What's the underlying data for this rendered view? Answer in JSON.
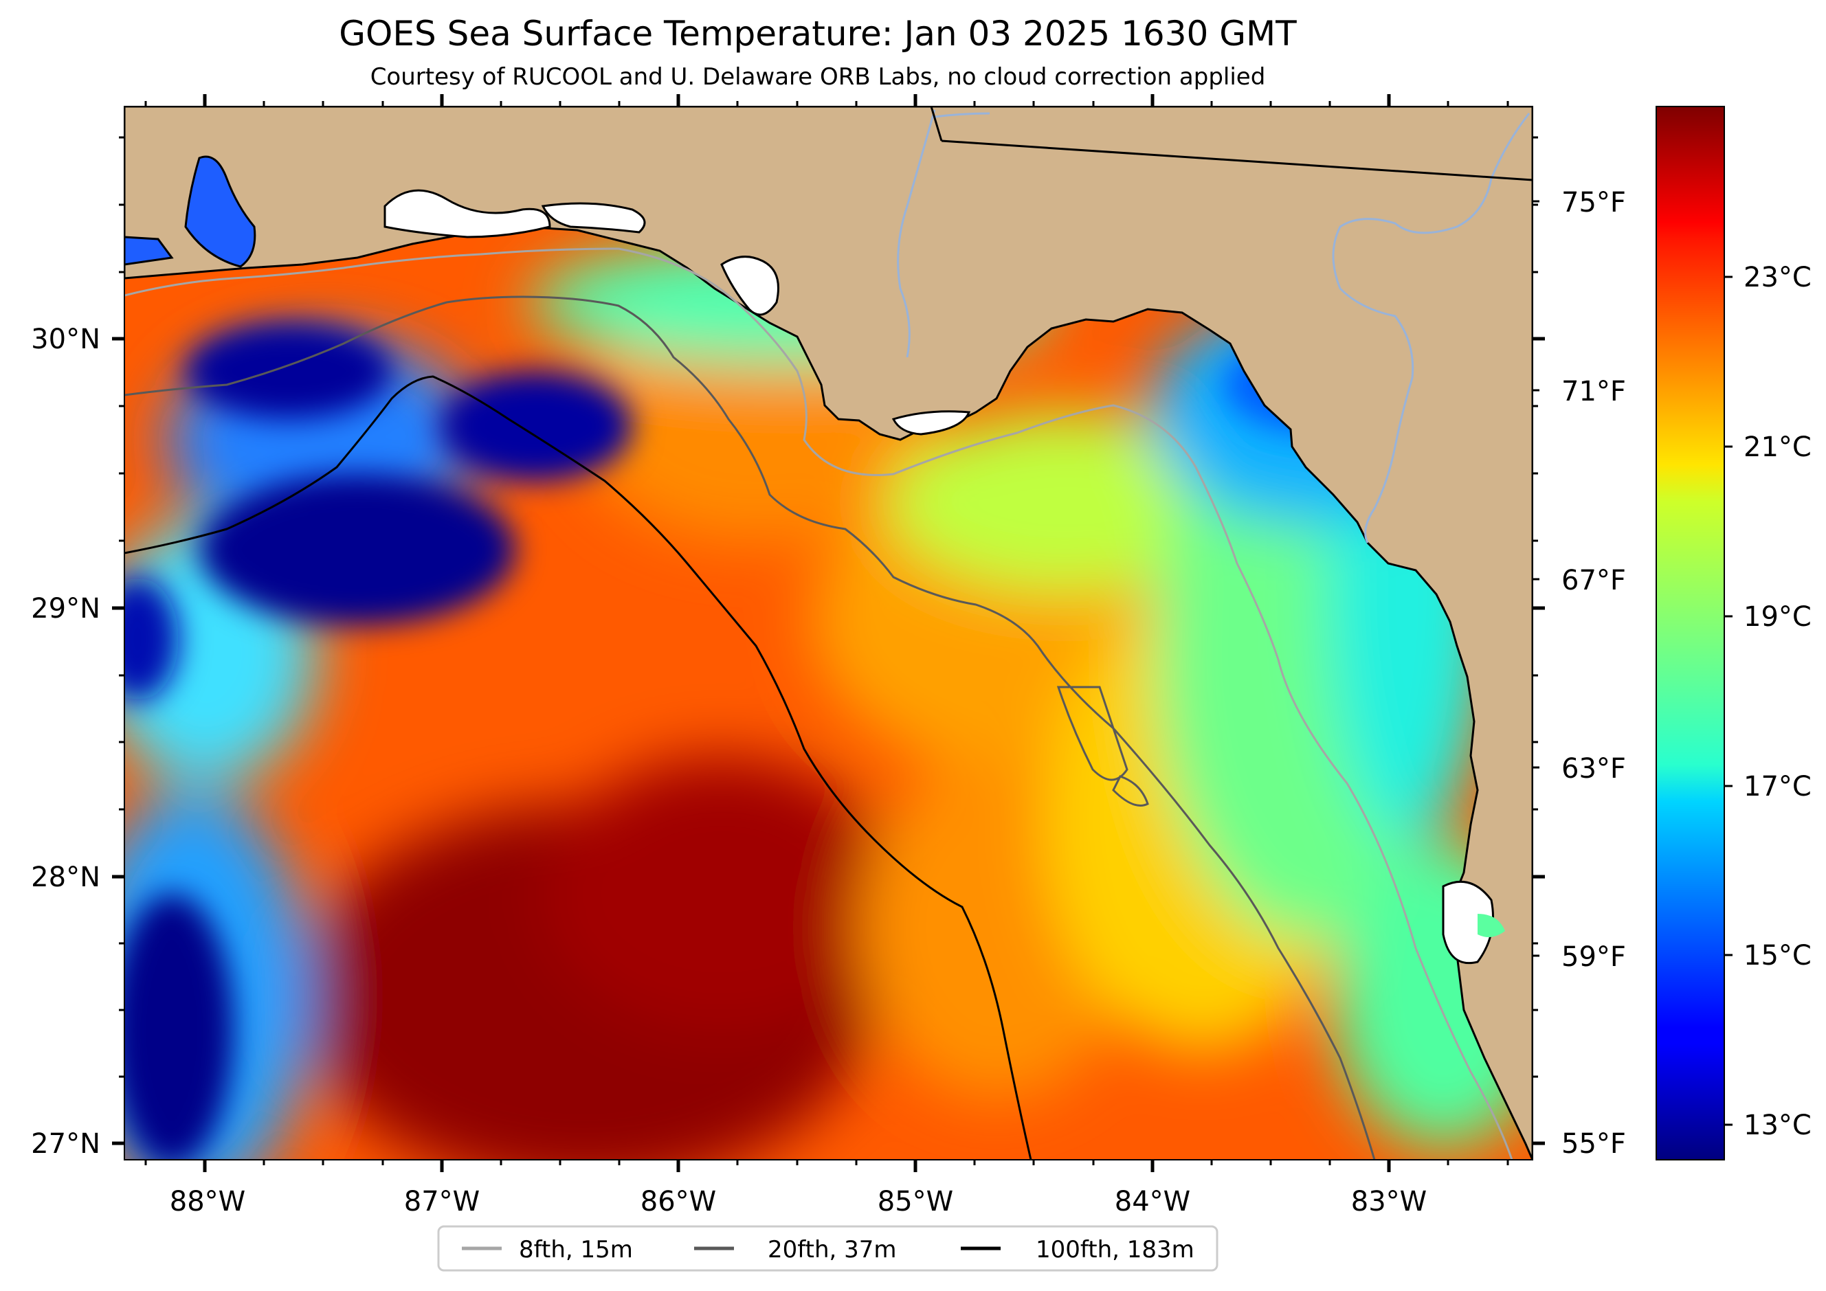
{
  "title": "GOES Sea Surface Temperature: Jan 03 2025 1630 GMT",
  "subtitle": "Courtesy of RUCOOL and U. Delaware ORB Labs, no cloud correction applied",
  "map": {
    "lon_ticks": [
      "88°W",
      "87°W",
      "86°W",
      "85°W",
      "84°W",
      "83°W"
    ],
    "lat_ticks": [
      "30°N",
      "29°N",
      "28°N",
      "27°N"
    ],
    "land_color": "#D2B48C",
    "coast_color": "#000000",
    "river_color": "#99B3D9"
  },
  "fahrenheit_ticks": [
    "75°F",
    "71°F",
    "67°F",
    "63°F",
    "59°F",
    "55°F"
  ],
  "colorbar": {
    "colormap": "jet",
    "ticks": [
      "23°C",
      "21°C",
      "19°C",
      "17°C",
      "15°C",
      "13°C"
    ]
  },
  "legend": {
    "items": [
      {
        "label": "8fth, 15m",
        "color": "#A6A6A6"
      },
      {
        "label": "20fth, 37m",
        "color": "#595959"
      },
      {
        "label": "100fth, 183m",
        "color": "#000000"
      }
    ]
  }
}
